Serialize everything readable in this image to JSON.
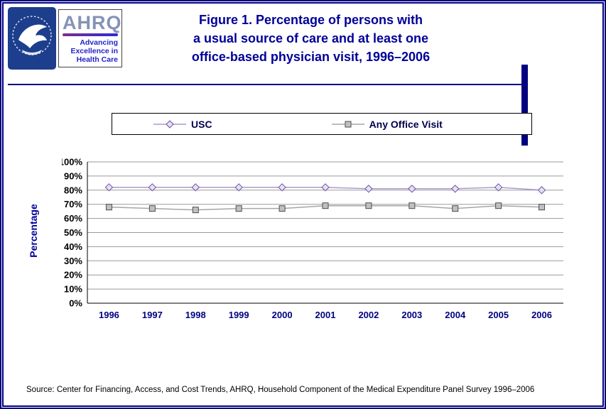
{
  "header": {
    "ahrq_wordmark": "AHRQ",
    "ahrq_tagline": [
      "Advancing",
      "Excellence in",
      "Health Care"
    ],
    "title_lines": [
      "Figure 1. Percentage of persons with",
      "a usual source of care and at least one",
      "office-based physician visit, 1996–2006"
    ]
  },
  "chart_data": {
    "type": "line",
    "title": "Figure 1. Percentage of persons with a usual source of care and at least one office-based physician visit, 1996–2006",
    "categories": [
      "1996",
      "1997",
      "1998",
      "1999",
      "2000",
      "2001",
      "2002",
      "2003",
      "2004",
      "2005",
      "2006"
    ],
    "series": [
      {
        "name": "USC",
        "marker": "diamond",
        "line_color": "#a79ad0",
        "marker_fill": "#e6e0f6",
        "marker_stroke": "#6a4fa0",
        "values": [
          82,
          82,
          82,
          82,
          82,
          82,
          81,
          81,
          81,
          82,
          80
        ]
      },
      {
        "name": "Any Office Visit",
        "marker": "square",
        "line_color": "#a6a6a6",
        "marker_fill": "#c0c0c0",
        "marker_stroke": "#4d4d4d",
        "values": [
          68,
          67,
          66,
          67,
          67,
          69,
          69,
          69,
          67,
          69,
          68
        ]
      }
    ],
    "xlabel": "",
    "ylabel": "Percentage",
    "ylim": [
      0,
      100
    ],
    "ytick_step": 10,
    "ytick_suffix": "%",
    "grid": true,
    "legend_position": "top"
  },
  "footer": {
    "source": "Source: Center for Financing, Access, and Cost Trends, AHRQ, Household Component of the Medical Expenditure Panel Survey 1996–2006"
  },
  "colors": {
    "page_border": "#000080",
    "title_text": "#000099",
    "year_label_text": "#000080",
    "gridline": "#9a9a9a"
  }
}
